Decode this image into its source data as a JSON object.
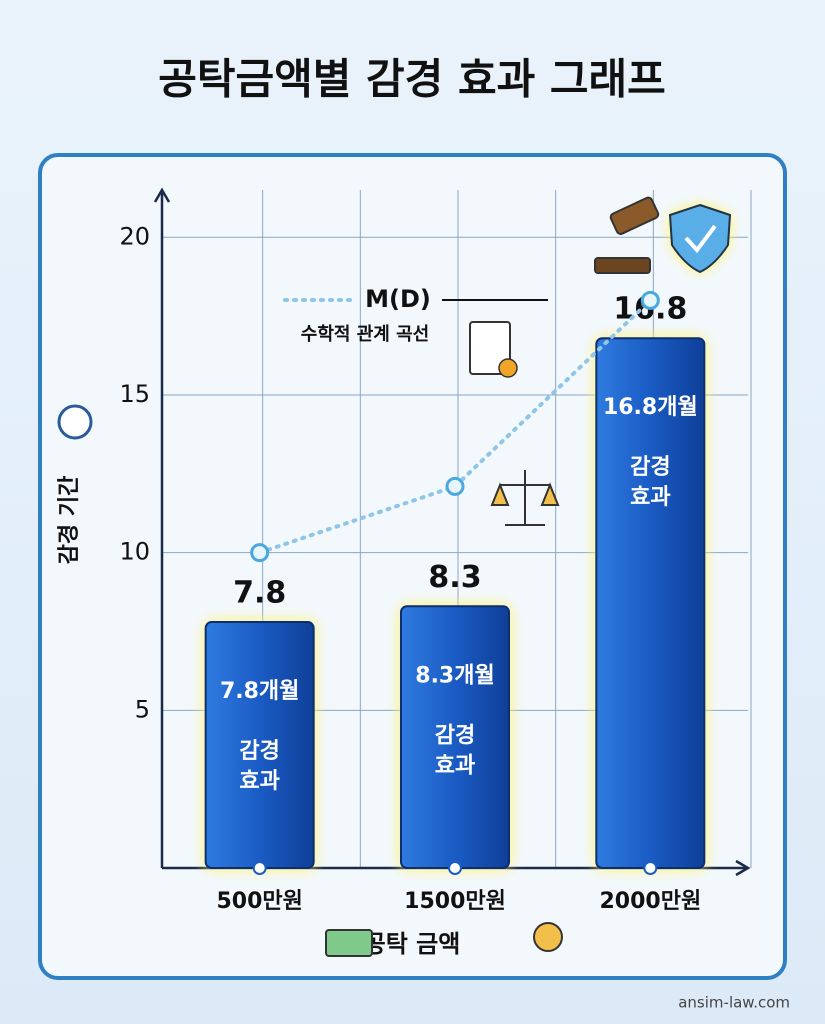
{
  "chart_data": {
    "type": "bar",
    "title": "공탁금액별 감경 효과 그래프",
    "categories": [
      "500만원",
      "1500만원",
      "2000만원"
    ],
    "values": [
      7.8,
      8.3,
      16.8
    ],
    "inner_labels": [
      "7.8개월",
      "8.3개월",
      "16.8개월"
    ],
    "effect_label": "감경 효과",
    "color": "#1a5bc4",
    "ylim": [
      0,
      21.5
    ],
    "yticks": [
      5,
      10,
      15,
      20
    ],
    "grid": true,
    "y_label": "감경 기간",
    "x_label": "공탁 금액",
    "curve": {
      "name": "M(D)",
      "label": "수학적 관계 곡선",
      "color": "#8fc6e8",
      "values": [
        10,
        12.1,
        18
      ]
    },
    "source": "ansim-law.com"
  }
}
